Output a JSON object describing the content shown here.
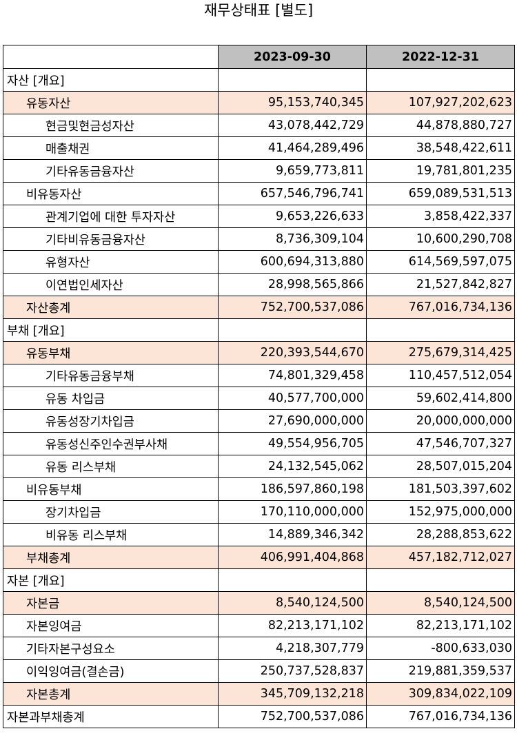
{
  "title": "재무상태표 [별도]",
  "columns": [
    "",
    "2023-09-30",
    "2022-12-31"
  ],
  "rows": [
    {
      "label": "자산 [개요]",
      "v1": "",
      "v2": "",
      "level": 0,
      "highlight": false
    },
    {
      "label": "유동자산",
      "v1": "95,153,740,345",
      "v2": "107,927,202,623",
      "level": 1,
      "highlight": true
    },
    {
      "label": "현금및현금성자산",
      "v1": "43,078,442,729",
      "v2": "44,878,880,727",
      "level": 2,
      "highlight": false
    },
    {
      "label": "매출채권",
      "v1": "41,464,289,496",
      "v2": "38,548,422,611",
      "level": 2,
      "highlight": false
    },
    {
      "label": "기타유동금융자산",
      "v1": "9,659,773,811",
      "v2": "19,781,801,235",
      "level": 2,
      "highlight": false
    },
    {
      "label": "비유동자산",
      "v1": "657,546,796,741",
      "v2": "659,089,531,513",
      "level": 1,
      "highlight": false
    },
    {
      "label": "관계기업에 대한 투자자산",
      "v1": "9,653,226,633",
      "v2": "3,858,422,337",
      "level": 2,
      "highlight": false
    },
    {
      "label": "기타비유동금융자산",
      "v1": "8,736,309,104",
      "v2": "10,600,290,708",
      "level": 2,
      "highlight": false
    },
    {
      "label": "유형자산",
      "v1": "600,694,313,880",
      "v2": "614,569,597,075",
      "level": 2,
      "highlight": false
    },
    {
      "label": "이연법인세자산",
      "v1": "28,998,565,866",
      "v2": "21,527,842,827",
      "level": 2,
      "highlight": false
    },
    {
      "label": "자산총계",
      "v1": "752,700,537,086",
      "v2": "767,016,734,136",
      "level": 1,
      "highlight": true
    },
    {
      "label": "부채 [개요]",
      "v1": "",
      "v2": "",
      "level": 0,
      "highlight": false
    },
    {
      "label": "유동부채",
      "v1": "220,393,544,670",
      "v2": "275,679,314,425",
      "level": 1,
      "highlight": true
    },
    {
      "label": "기타유동금융부채",
      "v1": "74,801,329,458",
      "v2": "110,457,512,054",
      "level": 2,
      "highlight": false
    },
    {
      "label": "유동 차입금",
      "v1": "40,577,700,000",
      "v2": "59,602,414,800",
      "level": 2,
      "highlight": false
    },
    {
      "label": "유동성장기차입금",
      "v1": "27,690,000,000",
      "v2": "20,000,000,000",
      "level": 2,
      "highlight": false
    },
    {
      "label": "유동성신주인수권부사채",
      "v1": "49,554,956,705",
      "v2": "47,546,707,327",
      "level": 2,
      "highlight": false
    },
    {
      "label": "유동 리스부채",
      "v1": "24,132,545,062",
      "v2": "28,507,015,204",
      "level": 2,
      "highlight": false
    },
    {
      "label": "비유동부채",
      "v1": "186,597,860,198",
      "v2": "181,503,397,602",
      "level": 1,
      "highlight": false
    },
    {
      "label": "장기차입금",
      "v1": "170,110,000,000",
      "v2": "152,975,000,000",
      "level": 2,
      "highlight": false
    },
    {
      "label": "비유동 리스부채",
      "v1": "14,889,346,342",
      "v2": "28,288,853,622",
      "level": 2,
      "highlight": false
    },
    {
      "label": "부채총계",
      "v1": "406,991,404,868",
      "v2": "457,182,712,027",
      "level": 1,
      "highlight": true
    },
    {
      "label": "자본 [개요]",
      "v1": "",
      "v2": "",
      "level": 0,
      "highlight": false
    },
    {
      "label": "자본금",
      "v1": "8,540,124,500",
      "v2": "8,540,124,500",
      "level": 1,
      "highlight": true
    },
    {
      "label": "자본잉여금",
      "v1": "82,213,171,102",
      "v2": "82,213,171,102",
      "level": 1,
      "highlight": false
    },
    {
      "label": "기타자본구성요소",
      "v1": "4,218,307,779",
      "v2": "-800,633,030",
      "level": 1,
      "highlight": false
    },
    {
      "label": "이익잉여금(결손금)",
      "v1": "250,737,528,837",
      "v2": "219,881,359,537",
      "level": 1,
      "highlight": false
    },
    {
      "label": "자본총계",
      "v1": "345,709,132,218",
      "v2": "309,834,022,109",
      "level": 1,
      "highlight": true
    },
    {
      "label": "자본과부채총계",
      "v1": "752,700,537,086",
      "v2": "767,016,734,136",
      "level": 0,
      "highlight": false
    }
  ],
  "colors": {
    "header_bg": "#c0c0c0",
    "highlight_bg": "#fce4d6"
  }
}
